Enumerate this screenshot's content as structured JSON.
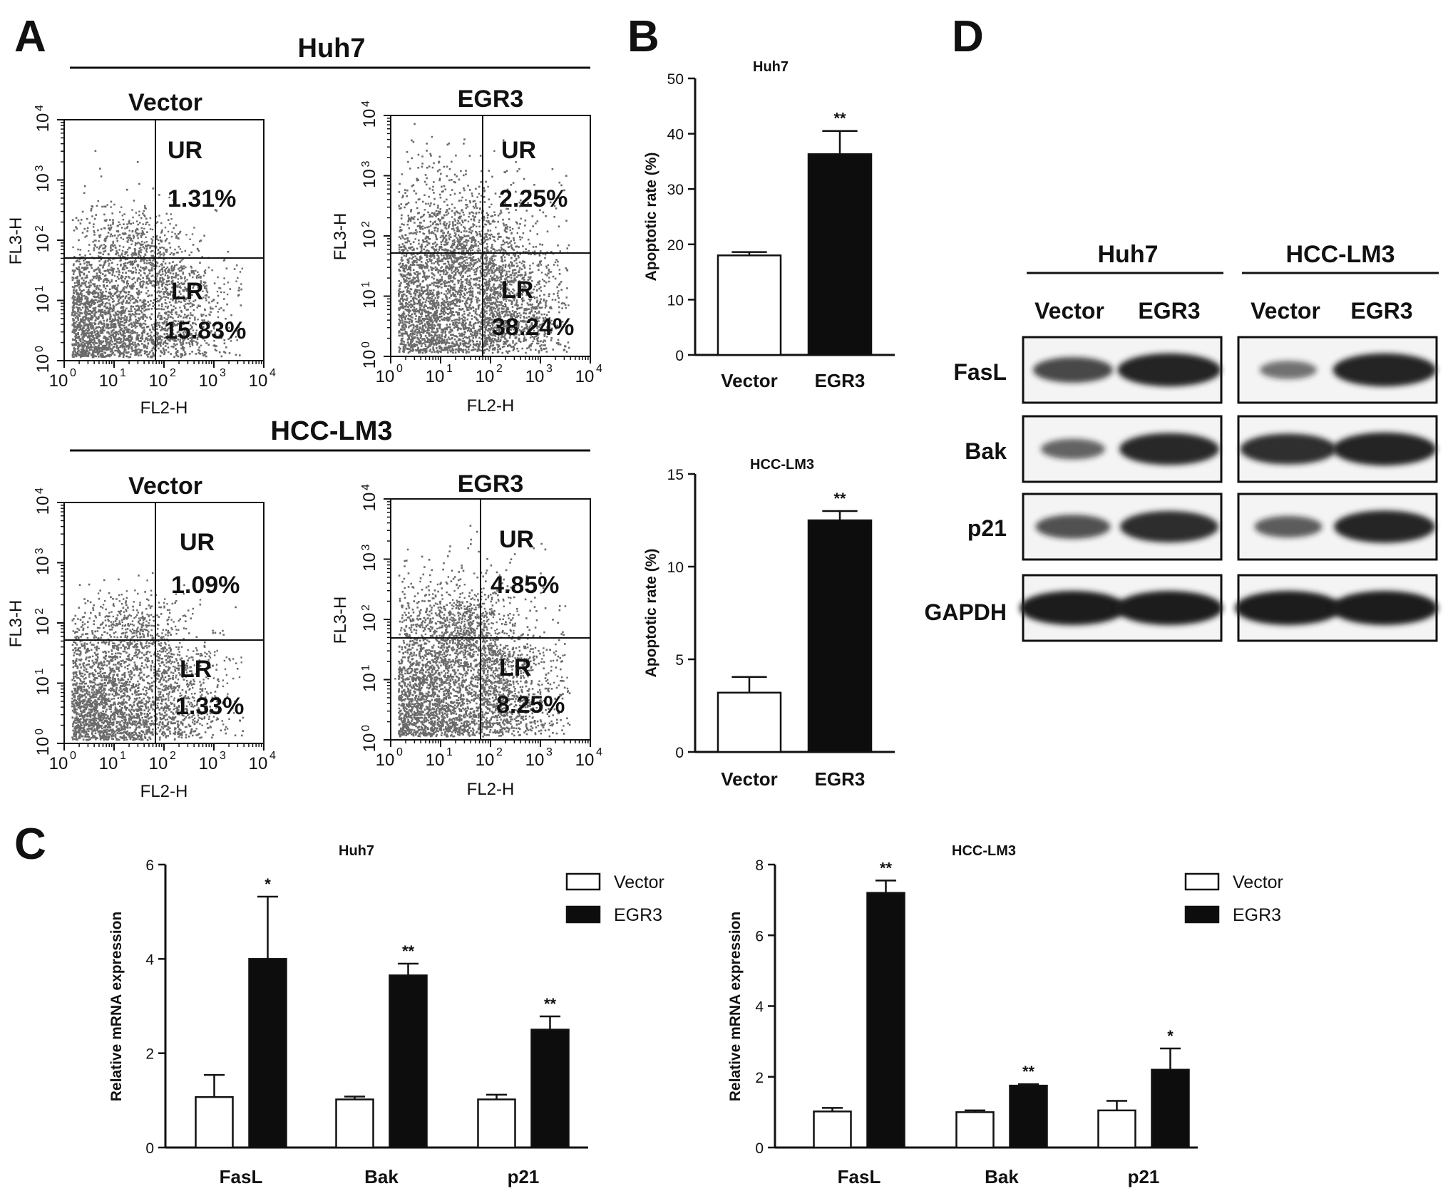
{
  "panel_letters": {
    "a": "A",
    "b": "B",
    "c": "C",
    "d": "D"
  },
  "colors": {
    "ink": "#111111",
    "dots": "#6a6a6a",
    "bar_vector": "#ffffff",
    "bar_egr3": "#0d0d0d",
    "band": "#1c1c1c"
  },
  "flow": {
    "groups": [
      {
        "label": "Huh7",
        "plots": [
          {
            "title": "Vector",
            "ur_label": "UR",
            "ur": "1.31%",
            "lr_label": "LR",
            "lr": "15.83%",
            "xlabel": "FL2-H",
            "ylabel": "FL3-H",
            "density": 0.55,
            "ur_spread": 0.25
          },
          {
            "title": "EGR3",
            "ur_label": "UR",
            "ur": "2.25%",
            "lr_label": "LR",
            "lr": "38.24%",
            "xlabel": "FL2-H",
            "ylabel": "FL3-H",
            "density": 1.0,
            "ur_spread": 0.45
          }
        ]
      },
      {
        "label": "HCC-LM3",
        "plots": [
          {
            "title": "Vector",
            "ur_label": "UR",
            "ur": "1.09%",
            "lr_label": "LR",
            "lr": "1.33%",
            "xlabel": "FL2-H",
            "ylabel": "FL3-H",
            "density": 0.45,
            "ur_spread": 0.2
          },
          {
            "title": "EGR3",
            "ur_label": "UR",
            "ur": "4.85%",
            "lr_label": "LR",
            "lr": "8.25%",
            "xlabel": "FL2-H",
            "ylabel": "FL3-H",
            "density": 0.75,
            "ur_spread": 0.6
          }
        ]
      }
    ],
    "tick_base": "10",
    "tick_exponents": [
      "0",
      "1",
      "2",
      "3",
      "4"
    ]
  },
  "chart_data": [
    {
      "type": "bar",
      "title": "Huh7",
      "xlabel": "",
      "ylabel": "Apoptotic rate (%)",
      "categories": [
        "Vector",
        "EGR3"
      ],
      "values": [
        18,
        36.3
      ],
      "errors": [
        0.6,
        4.2
      ],
      "significance": [
        "",
        "**"
      ],
      "ylim": [
        0,
        50
      ],
      "yticks": [
        "0",
        "10",
        "20",
        "30",
        "40",
        "50"
      ]
    },
    {
      "type": "bar",
      "title": "HCC-LM3",
      "xlabel": "",
      "ylabel": "Apoptotic rate (%)",
      "categories": [
        "Vector",
        "EGR3"
      ],
      "values": [
        3.2,
        12.5
      ],
      "errors": [
        0.85,
        0.5
      ],
      "significance": [
        "",
        "**"
      ],
      "ylim": [
        0,
        15
      ],
      "yticks": [
        "0",
        "5",
        "10",
        "15"
      ]
    },
    {
      "type": "bar",
      "title": "Huh7",
      "xlabel": "",
      "ylabel": "Relative mRNA expression",
      "categories": [
        "FasL",
        "Bak",
        "p21"
      ],
      "series": [
        {
          "name": "Vector",
          "values": [
            1.07,
            1.02,
            1.02
          ],
          "errors": [
            0.47,
            0.06,
            0.1
          ]
        },
        {
          "name": "EGR3",
          "values": [
            4.0,
            3.65,
            2.5
          ],
          "errors": [
            1.32,
            0.25,
            0.28
          ]
        }
      ],
      "significance": [
        "*",
        "**",
        "**"
      ],
      "ylim": [
        0,
        6
      ],
      "yticks": [
        "0",
        "2",
        "4",
        "6"
      ],
      "legend": "top-right"
    },
    {
      "type": "bar",
      "title": "HCC-LM3",
      "xlabel": "",
      "ylabel": "Relative mRNA expression",
      "categories": [
        "FasL",
        "Bak",
        "p21"
      ],
      "series": [
        {
          "name": "Vector",
          "values": [
            1.02,
            1.0,
            1.05
          ],
          "errors": [
            0.1,
            0.05,
            0.27
          ]
        },
        {
          "name": "EGR3",
          "values": [
            7.2,
            1.75,
            2.2
          ],
          "errors": [
            0.35,
            0.04,
            0.6
          ]
        }
      ],
      "significance": [
        "**",
        "**",
        "*"
      ],
      "ylim": [
        0,
        8
      ],
      "yticks": [
        "0",
        "2",
        "4",
        "6",
        "8"
      ],
      "legend": "top-right"
    }
  ],
  "western": {
    "groups": [
      {
        "label": "Huh7",
        "lanes": [
          "Vector",
          "EGR3"
        ]
      },
      {
        "label": "HCC-LM3",
        "lanes": [
          "Vector",
          "EGR3"
        ]
      }
    ],
    "proteins": [
      "FasL",
      "Bak",
      "p21",
      "GAPDH"
    ],
    "intensity": [
      [
        [
          0.62,
          0.95
        ],
        [
          0.3,
          0.95
        ]
      ],
      [
        [
          0.4,
          0.9
        ],
        [
          0.85,
          0.95
        ]
      ],
      [
        [
          0.55,
          0.88
        ],
        [
          0.45,
          0.92
        ]
      ],
      [
        [
          1.0,
          1.0
        ],
        [
          1.0,
          1.0
        ]
      ]
    ]
  }
}
